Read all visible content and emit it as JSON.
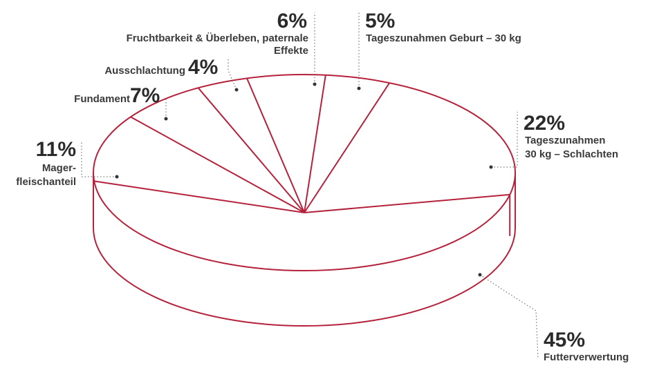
{
  "colors": {
    "outline": "#b5213b",
    "text": "#2b2b2b"
  },
  "chart_data": {
    "type": "pie",
    "style": "3d-outline",
    "slices": [
      {
        "label": "Futterverwertung",
        "value": 45,
        "value_label": "45%"
      },
      {
        "label": "Tageszunahmen 30 kg – Schlachten",
        "label_lines": [
          "Tageszunahmen",
          "30 kg – Schlachten"
        ],
        "value": 22,
        "value_label": "22%"
      },
      {
        "label": "Tageszunahmen Geburt – 30 kg",
        "label_lines": [
          "Tageszunahmen Geburt – 30 kg"
        ],
        "value": 5,
        "value_label": "5%"
      },
      {
        "label": "Fruchtbarkeit & Überleben, paternale Effekte",
        "label_lines": [
          "Fruchtbarkeit & Überleben, paternale",
          "Effekte"
        ],
        "value": 6,
        "value_label": "6%"
      },
      {
        "label": "Ausschlachtung",
        "label_lines": [
          "Ausschlachtung"
        ],
        "value": 4,
        "value_label": "4%"
      },
      {
        "label": "Fundament",
        "label_lines": [
          "Fundament"
        ],
        "value": 7,
        "value_label": "7%"
      },
      {
        "label": "Magerfleischanteil",
        "label_lines": [
          "Mager-",
          "fleischanteil"
        ],
        "value": 11,
        "value_label": "11%"
      }
    ]
  }
}
